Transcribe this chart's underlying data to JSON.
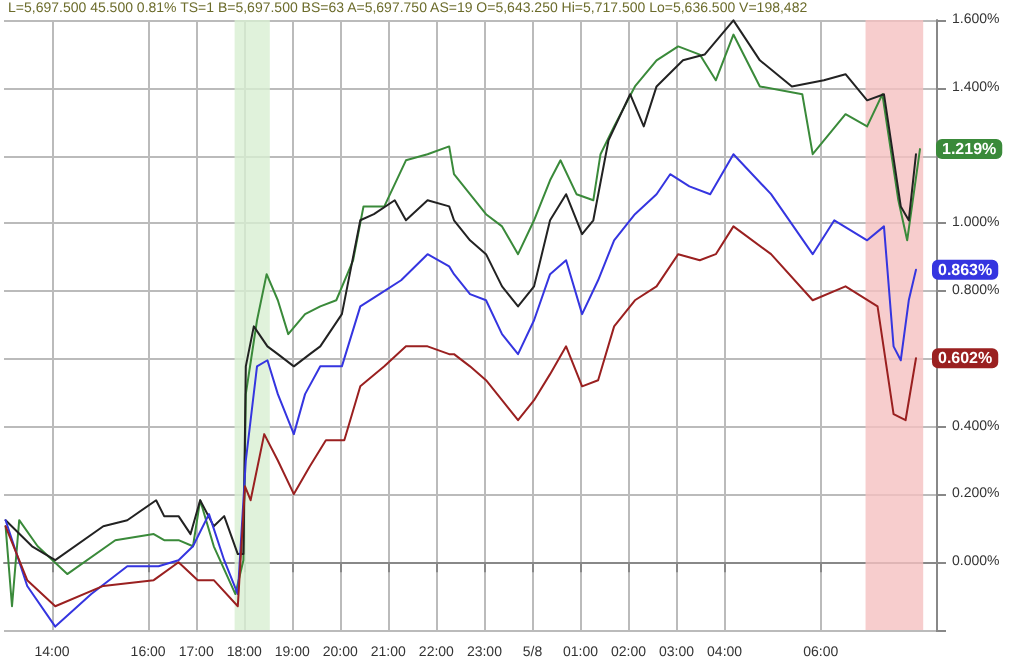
{
  "chart_data": {
    "type": "line",
    "annotations": [
      "L=5,697.500 45.500 0.81% TS=1 B=5,697.500 BS=63 A=5,697.750 AS=19 O=5,643.250 Hi=5,717.500 Lo=5,636.500 V=198,482"
    ],
    "xlim": [
      "--05-07T13:00",
      "--05-08T08:24"
    ],
    "xticks": [
      {
        "value": "--05-07T14:00",
        "label": "14:00"
      },
      {
        "value": "--05-07T16:00",
        "label": "16:00"
      },
      {
        "value": "--05-07T17:00",
        "label": "17:00"
      },
      {
        "value": "--05-07T18:00",
        "label": "18:00"
      },
      {
        "value": "--05-07T19:00",
        "label": "19:00"
      },
      {
        "value": "--05-07T20:00",
        "label": "20:00"
      },
      {
        "value": "--05-07T21:00",
        "label": "21:00"
      },
      {
        "value": "--05-07T22:00",
        "label": "22:00"
      },
      {
        "value": "--05-07T23:00",
        "label": "23:00"
      },
      {
        "value": "--05-08T00:00",
        "label": "5/8"
      },
      {
        "value": "--05-08T01:00",
        "label": "01:00"
      },
      {
        "value": "--05-08T02:00",
        "label": "02:00"
      },
      {
        "value": "--05-08T03:00",
        "label": "03:00"
      },
      {
        "value": "--05-08T04:00",
        "label": "04:00"
      },
      {
        "value": "--05-08T06:00",
        "label": "06:00"
      }
    ],
    "ylim": [
      -0.2,
      1.6
    ],
    "yticks": [
      {
        "value": -0.2,
        "label": null
      },
      {
        "value": 0,
        "label": "0.000%"
      },
      {
        "value": 0.2,
        "label": "0.200%"
      },
      {
        "value": 0.4,
        "label": "0.400%"
      },
      {
        "value": 0.6,
        "label": null
      },
      {
        "value": 0.8,
        "label": "0.800%"
      },
      {
        "value": 1.0,
        "label": "1.000%"
      },
      {
        "value": 1.2,
        "label": null
      },
      {
        "value": 1.4,
        "label": "1.400%"
      },
      {
        "value": 1.6,
        "label": "1.600%"
      }
    ],
    "grid": true,
    "marker": "none",
    "line_style": "solid",
    "bands": [
      {
        "axis": "x",
        "from": "--05-07T17:48",
        "to": "--05-07T18:32",
        "color": "#d8efd2"
      },
      {
        "axis": "x",
        "from": "--05-08T06:56",
        "to": "--05-08T08:08",
        "color": "#f5c0c0"
      }
    ],
    "series": [
      {
        "color": "#3a8a3a",
        "x": [
          "--05-07T13:02",
          "--05-07T13:10",
          "--05-07T13:19",
          "--05-07T13:42",
          "--05-07T14:19",
          "--05-07T15:19",
          "--05-07T16:07",
          "--05-07T16:20",
          "--05-07T16:38",
          "--05-07T16:56",
          "--05-07T17:05",
          "--05-07T17:22",
          "--05-07T17:49",
          "--05-07T17:59",
          "--05-07T18:02",
          "--05-07T18:16",
          "--05-07T18:28",
          "--05-07T18:42",
          "--05-07T18:55",
          "--05-07T19:16",
          "--05-07T19:35",
          "--05-07T19:55",
          "--05-07T20:16",
          "--05-07T20:29",
          "--05-07T20:55",
          "--05-07T21:22",
          "--05-07T21:49",
          "--05-07T22:16",
          "--05-07T22:22",
          "--05-07T22:42",
          "--05-07T23:02",
          "--05-07T23:22",
          "--05-07T23:42",
          "--05-08T00:02",
          "--05-08T00:22",
          "--05-08T00:35",
          "--05-08T00:55",
          "--05-08T01:16",
          "--05-08T01:25",
          "--05-08T01:42",
          "--05-08T02:08",
          "--05-08T02:35",
          "--05-08T03:02",
          "--05-08T03:29",
          "--05-08T03:49",
          "--05-08T04:11",
          "--05-08T04:44",
          "--05-08T05:37",
          "--05-08T05:50",
          "--05-08T06:31",
          "--05-08T06:58",
          "--05-08T07:17",
          "--05-08T07:37",
          "--05-08T07:48",
          "--05-08T08:04"
        ],
        "values": [
          0.106,
          -0.13,
          0.124,
          0.047,
          -0.035,
          0.065,
          0.083,
          0.065,
          0.065,
          0.047,
          0.183,
          0.047,
          -0.094,
          0.006,
          0.496,
          0.714,
          0.85,
          0.773,
          0.673,
          0.732,
          0.755,
          0.773,
          0.891,
          1.05,
          1.05,
          1.186,
          1.204,
          1.227,
          1.145,
          1.086,
          1.027,
          0.991,
          0.909,
          1.009,
          1.127,
          1.186,
          1.086,
          1.068,
          1.204,
          1.286,
          1.404,
          1.481,
          1.522,
          1.498,
          1.422,
          1.557,
          1.404,
          1.381,
          1.204,
          1.322,
          1.286,
          1.381,
          1.068,
          0.95,
          1.219
        ],
        "value_labels": [
          null,
          null,
          null,
          null,
          null,
          null,
          null,
          null,
          null,
          null,
          null,
          null,
          null,
          null,
          null,
          null,
          null,
          null,
          null,
          null,
          null,
          null,
          null,
          null,
          null,
          null,
          null,
          null,
          null,
          null,
          null,
          null,
          null,
          null,
          null,
          null,
          null,
          null,
          null,
          null,
          null,
          null,
          null,
          null,
          null,
          null,
          null,
          null,
          null,
          null,
          null,
          null,
          null,
          null,
          "1.219%"
        ]
      },
      {
        "color": "#222222",
        "x": [
          "--05-07T13:02",
          "--05-07T13:35",
          "--05-07T14:04",
          "--05-07T15:04",
          "--05-07T15:34",
          "--05-07T16:10",
          "--05-07T16:20",
          "--05-07T16:38",
          "--05-07T16:53",
          "--05-07T17:05",
          "--05-07T17:22",
          "--05-07T17:35",
          "--05-07T17:52",
          "--05-07T17:59",
          "--05-07T18:02",
          "--05-07T18:12",
          "--05-07T18:29",
          "--05-07T18:42",
          "--05-07T19:02",
          "--05-07T19:22",
          "--05-07T19:35",
          "--05-07T20:02",
          "--05-07T20:25",
          "--05-07T20:42",
          "--05-07T21:08",
          "--05-07T21:22",
          "--05-07T21:49",
          "--05-07T22:16",
          "--05-07T22:22",
          "--05-07T22:42",
          "--05-07T23:02",
          "--05-07T23:22",
          "--05-07T23:42",
          "--05-08T00:02",
          "--05-08T00:22",
          "--05-08T00:42",
          "--05-08T01:02",
          "--05-08T01:16",
          "--05-08T01:35",
          "--05-08T02:02",
          "--05-08T02:19",
          "--05-08T02:35",
          "--05-08T03:08",
          "--05-08T03:35",
          "--05-08T04:11",
          "--05-08T04:44",
          "--05-08T05:24",
          "--05-08T06:04",
          "--05-08T06:31",
          "--05-08T06:58",
          "--05-08T07:19",
          "--05-08T07:40",
          "--05-08T07:50",
          "--05-08T07:59"
        ],
        "values": [
          0.124,
          0.047,
          0.006,
          0.106,
          0.124,
          0.183,
          0.136,
          0.136,
          0.083,
          0.183,
          0.106,
          0.136,
          0.024,
          0.024,
          0.578,
          0.696,
          0.637,
          0.614,
          0.578,
          0.614,
          0.637,
          0.732,
          1.009,
          1.027,
          1.068,
          1.009,
          1.068,
          1.05,
          1.009,
          0.95,
          0.909,
          0.814,
          0.755,
          0.814,
          1.009,
          1.086,
          0.968,
          1.009,
          1.245,
          1.381,
          1.286,
          1.404,
          1.481,
          1.498,
          1.599,
          1.481,
          1.404,
          1.422,
          1.44,
          1.363,
          1.381,
          1.05,
          1.009,
          1.204
        ]
      },
      {
        "color": "#3535e0",
        "x": [
          "--05-07T13:02",
          "--05-07T13:29",
          "--05-07T14:04",
          "--05-07T14:49",
          "--05-07T15:34",
          "--05-07T16:13",
          "--05-07T16:38",
          "--05-07T16:56",
          "--05-07T17:16",
          "--05-07T17:35",
          "--05-07T17:52",
          "--05-07T18:02",
          "--05-07T18:16",
          "--05-07T18:29",
          "--05-07T18:42",
          "--05-07T19:02",
          "--05-07T19:16",
          "--05-07T19:35",
          "--05-07T20:02",
          "--05-07T20:25",
          "--05-07T20:49",
          "--05-07T21:16",
          "--05-07T21:49",
          "--05-07T22:16",
          "--05-07T22:22",
          "--05-07T22:42",
          "--05-07T23:02",
          "--05-07T23:22",
          "--05-07T23:42",
          "--05-08T00:02",
          "--05-08T00:22",
          "--05-08T00:42",
          "--05-08T01:02",
          "--05-08T01:22",
          "--05-08T01:42",
          "--05-08T02:08",
          "--05-08T02:35",
          "--05-08T02:52",
          "--05-08T03:16",
          "--05-08T03:42",
          "--05-08T04:11",
          "--05-08T04:58",
          "--05-08T05:50",
          "--05-08T06:17",
          "--05-08T06:58",
          "--05-08T07:19",
          "--05-08T07:31",
          "--05-08T07:40",
          "--05-08T07:50",
          "--05-08T07:59"
        ],
        "values": [
          0.124,
          -0.07,
          -0.19,
          -0.094,
          -0.012,
          -0.012,
          0.006,
          0.047,
          0.142,
          0.006,
          -0.094,
          0.3,
          0.578,
          0.596,
          0.496,
          0.378,
          0.496,
          0.578,
          0.578,
          0.755,
          0.791,
          0.832,
          0.909,
          0.873,
          0.85,
          0.791,
          0.773,
          0.673,
          0.614,
          0.714,
          0.85,
          0.891,
          0.732,
          0.832,
          0.95,
          1.027,
          1.086,
          1.145,
          1.109,
          1.086,
          1.204,
          1.086,
          0.909,
          1.009,
          0.95,
          0.991,
          0.637,
          0.596,
          0.773,
          0.863
        ],
        "value_labels": [
          null,
          null,
          null,
          null,
          null,
          null,
          null,
          null,
          null,
          null,
          null,
          null,
          null,
          null,
          null,
          null,
          null,
          null,
          null,
          null,
          null,
          null,
          null,
          null,
          null,
          null,
          null,
          null,
          null,
          null,
          null,
          null,
          null,
          null,
          null,
          null,
          null,
          null,
          null,
          null,
          null,
          null,
          null,
          null,
          null,
          null,
          null,
          null,
          null,
          "0.863%"
        ]
      },
      {
        "color": "#9a2020",
        "x": [
          "--05-07T13:02",
          "--05-07T13:29",
          "--05-07T14:04",
          "--05-07T15:04",
          "--05-07T16:07",
          "--05-07T16:38",
          "--05-07T17:02",
          "--05-07T17:22",
          "--05-07T17:52",
          "--05-07T18:01",
          "--05-07T18:08",
          "--05-07T18:25",
          "--05-07T18:42",
          "--05-07T19:02",
          "--05-07T19:22",
          "--05-07T19:42",
          "--05-07T20:05",
          "--05-07T20:25",
          "--05-07T20:55",
          "--05-07T21:22",
          "--05-07T21:49",
          "--05-07T22:16",
          "--05-07T22:22",
          "--05-07T22:42",
          "--05-07T23:02",
          "--05-07T23:22",
          "--05-07T23:42",
          "--05-08T00:02",
          "--05-08T00:22",
          "--05-08T00:42",
          "--05-08T01:02",
          "--05-08T01:22",
          "--05-08T01:42",
          "--05-08T02:08",
          "--05-08T02:35",
          "--05-08T03:02",
          "--05-08T03:29",
          "--05-08T03:49",
          "--05-08T04:11",
          "--05-08T04:58",
          "--05-08T05:50",
          "--05-08T06:31",
          "--05-08T07:11",
          "--05-08T07:31",
          "--05-08T07:46",
          "--05-08T07:59"
        ],
        "values": [
          0.106,
          -0.053,
          -0.13,
          -0.07,
          -0.053,
          0.0,
          -0.053,
          -0.053,
          -0.13,
          0.224,
          0.183,
          0.378,
          0.3,
          0.201,
          0.283,
          0.36,
          0.36,
          0.519,
          0.578,
          0.637,
          0.637,
          0.614,
          0.614,
          0.578,
          0.537,
          0.478,
          0.419,
          0.478,
          0.555,
          0.637,
          0.519,
          0.537,
          0.696,
          0.773,
          0.814,
          0.909,
          0.891,
          0.909,
          0.991,
          0.909,
          0.773,
          0.814,
          0.755,
          0.437,
          0.419,
          0.602
        ],
        "value_labels": [
          null,
          null,
          null,
          null,
          null,
          null,
          null,
          null,
          null,
          null,
          null,
          null,
          null,
          null,
          null,
          null,
          null,
          null,
          null,
          null,
          null,
          null,
          null,
          null,
          null,
          null,
          null,
          null,
          null,
          null,
          null,
          null,
          null,
          null,
          null,
          null,
          null,
          null,
          null,
          null,
          null,
          null,
          null,
          null,
          null,
          "0.602%"
        ]
      }
    ]
  }
}
